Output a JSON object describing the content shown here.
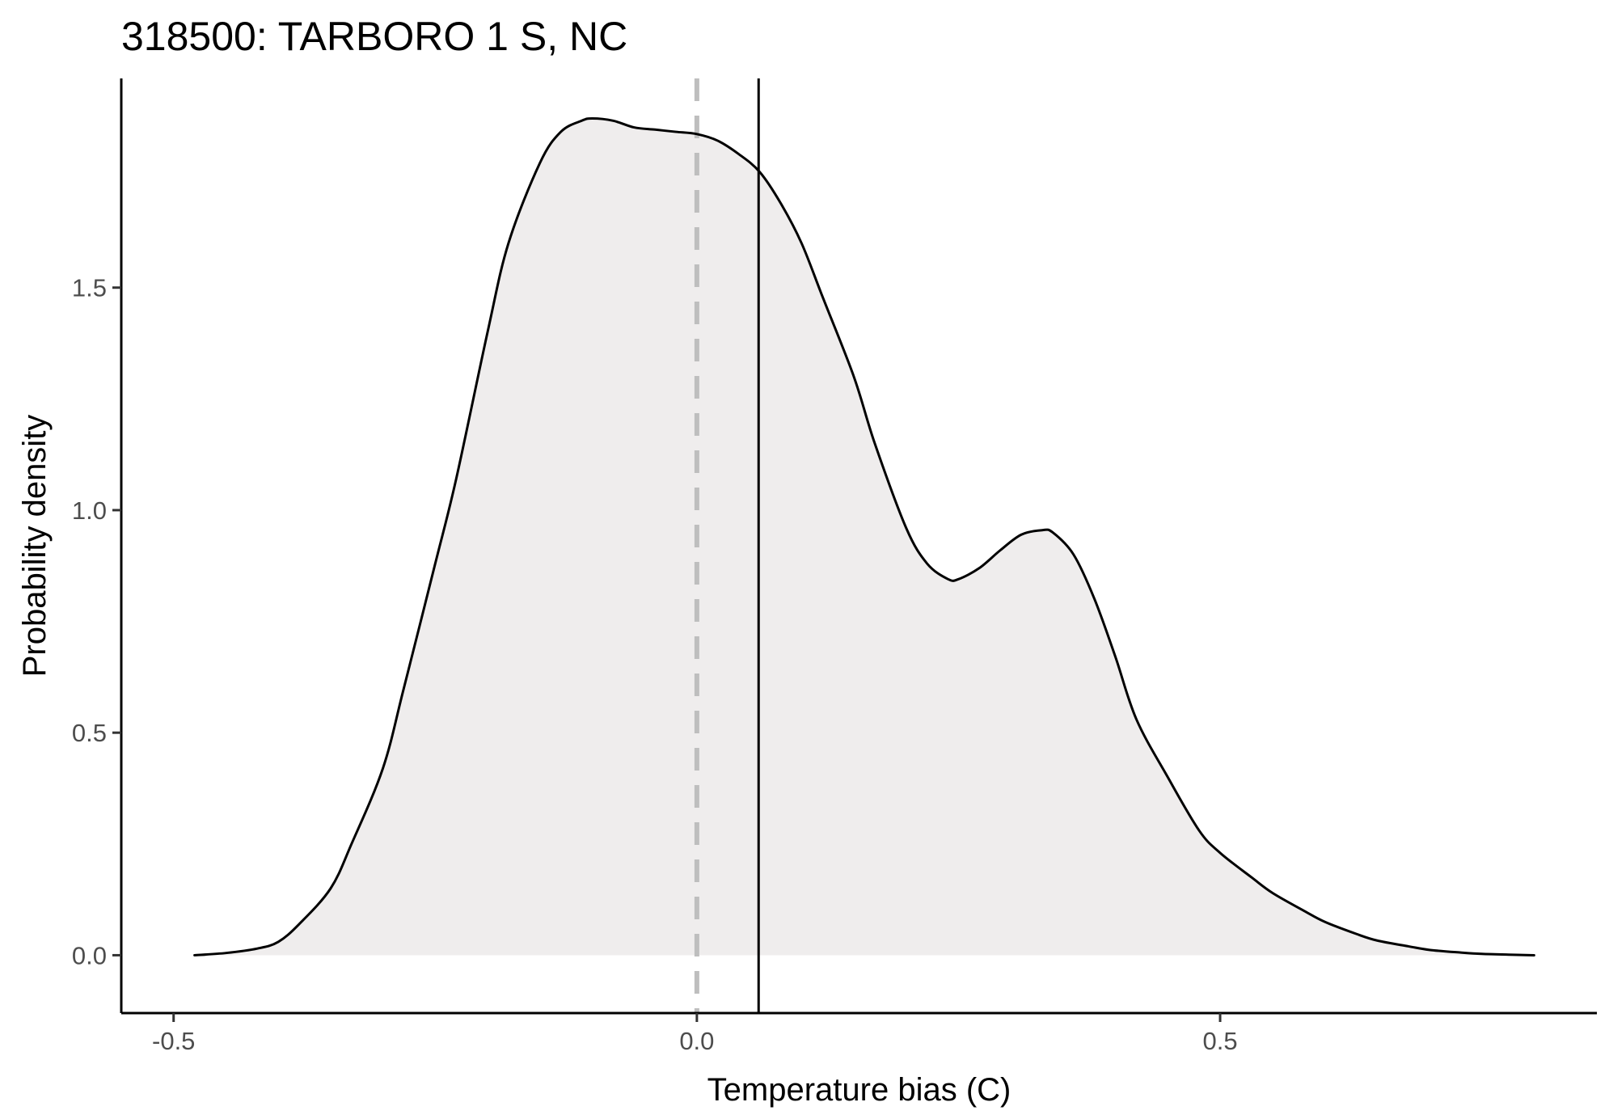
{
  "chart_data": {
    "type": "area",
    "title": "318500: TARBORO 1 S, NC",
    "xlabel": "Temperature bias (C)",
    "ylabel": "Probability density",
    "xlim": [
      -0.55,
      0.86
    ],
    "ylim": [
      -0.13,
      1.97
    ],
    "x_ticks": [
      -0.5,
      0.0,
      0.5
    ],
    "x_tick_labels": [
      "-0.5",
      "0.0",
      "0.5"
    ],
    "y_ticks": [
      0.0,
      0.5,
      1.0,
      1.5
    ],
    "y_tick_labels": [
      "0.0",
      "0.5",
      "1.0",
      "1.5"
    ],
    "grid": false,
    "legend": "none",
    "fill_color": "#efeded",
    "line_color": "#000000",
    "zero_line": {
      "x": 0.0,
      "style": "dashed",
      "color": "#bebebe"
    },
    "mean_line": {
      "x": 0.059,
      "style": "solid",
      "color": "#000000"
    },
    "series": [
      {
        "x": [
          -0.48,
          -0.45,
          -0.42,
          -0.4,
          -0.38,
          -0.35,
          -0.33,
          -0.3,
          -0.28,
          -0.25,
          -0.23,
          -0.2,
          -0.18,
          -0.15,
          -0.13,
          -0.11,
          -0.1,
          -0.08,
          -0.06,
          -0.04,
          -0.02,
          0.0,
          0.02,
          0.04,
          0.06,
          0.08,
          0.1,
          0.12,
          0.15,
          0.17,
          0.2,
          0.22,
          0.24,
          0.25,
          0.27,
          0.29,
          0.31,
          0.33,
          0.34,
          0.36,
          0.38,
          0.4,
          0.42,
          0.45,
          0.48,
          0.5,
          0.53,
          0.55,
          0.58,
          0.6,
          0.63,
          0.65,
          0.68,
          0.7,
          0.73,
          0.75,
          0.78,
          0.8
        ],
        "y": [
          0.0,
          0.005,
          0.015,
          0.03,
          0.07,
          0.15,
          0.25,
          0.42,
          0.6,
          0.88,
          1.07,
          1.4,
          1.6,
          1.78,
          1.85,
          1.875,
          1.88,
          1.875,
          1.86,
          1.855,
          1.85,
          1.845,
          1.83,
          1.8,
          1.76,
          1.69,
          1.6,
          1.48,
          1.3,
          1.15,
          0.96,
          0.88,
          0.845,
          0.845,
          0.87,
          0.91,
          0.945,
          0.955,
          0.95,
          0.9,
          0.8,
          0.67,
          0.53,
          0.4,
          0.28,
          0.23,
          0.175,
          0.14,
          0.1,
          0.075,
          0.048,
          0.033,
          0.02,
          0.012,
          0.006,
          0.003,
          0.001,
          0.0
        ]
      }
    ]
  }
}
